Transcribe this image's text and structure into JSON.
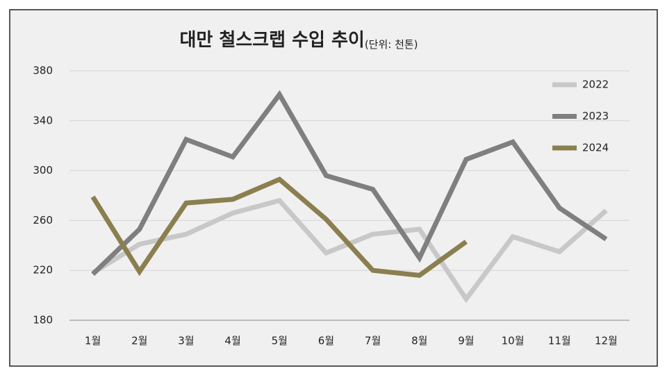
{
  "chart_data": {
    "type": "line",
    "title": "대만 철스크랩 수입 추이",
    "subtitle": "(단위: 천톤)",
    "categories": [
      "1월",
      "2월",
      "3월",
      "4월",
      "5월",
      "6월",
      "7월",
      "8월",
      "9월",
      "10월",
      "11월",
      "12월"
    ],
    "series": [
      {
        "name": "2022",
        "color": "#c8c8c8",
        "values": [
          218,
          241,
          249,
          266,
          276,
          234,
          249,
          253,
          197,
          247,
          235,
          268
        ]
      },
      {
        "name": "2023",
        "color": "#7f7f7f",
        "values": [
          217,
          253,
          325,
          311,
          361,
          296,
          285,
          230,
          309,
          323,
          270,
          245
        ]
      },
      {
        "name": "2024",
        "color": "#8b7f4f",
        "values": [
          279,
          219,
          274,
          277,
          293,
          261,
          220,
          216,
          243,
          null,
          null,
          null
        ]
      }
    ],
    "ylim": [
      180,
      380
    ],
    "yticks": [
      180,
      220,
      260,
      300,
      340,
      380
    ],
    "grid": true,
    "legend": "top-right"
  }
}
